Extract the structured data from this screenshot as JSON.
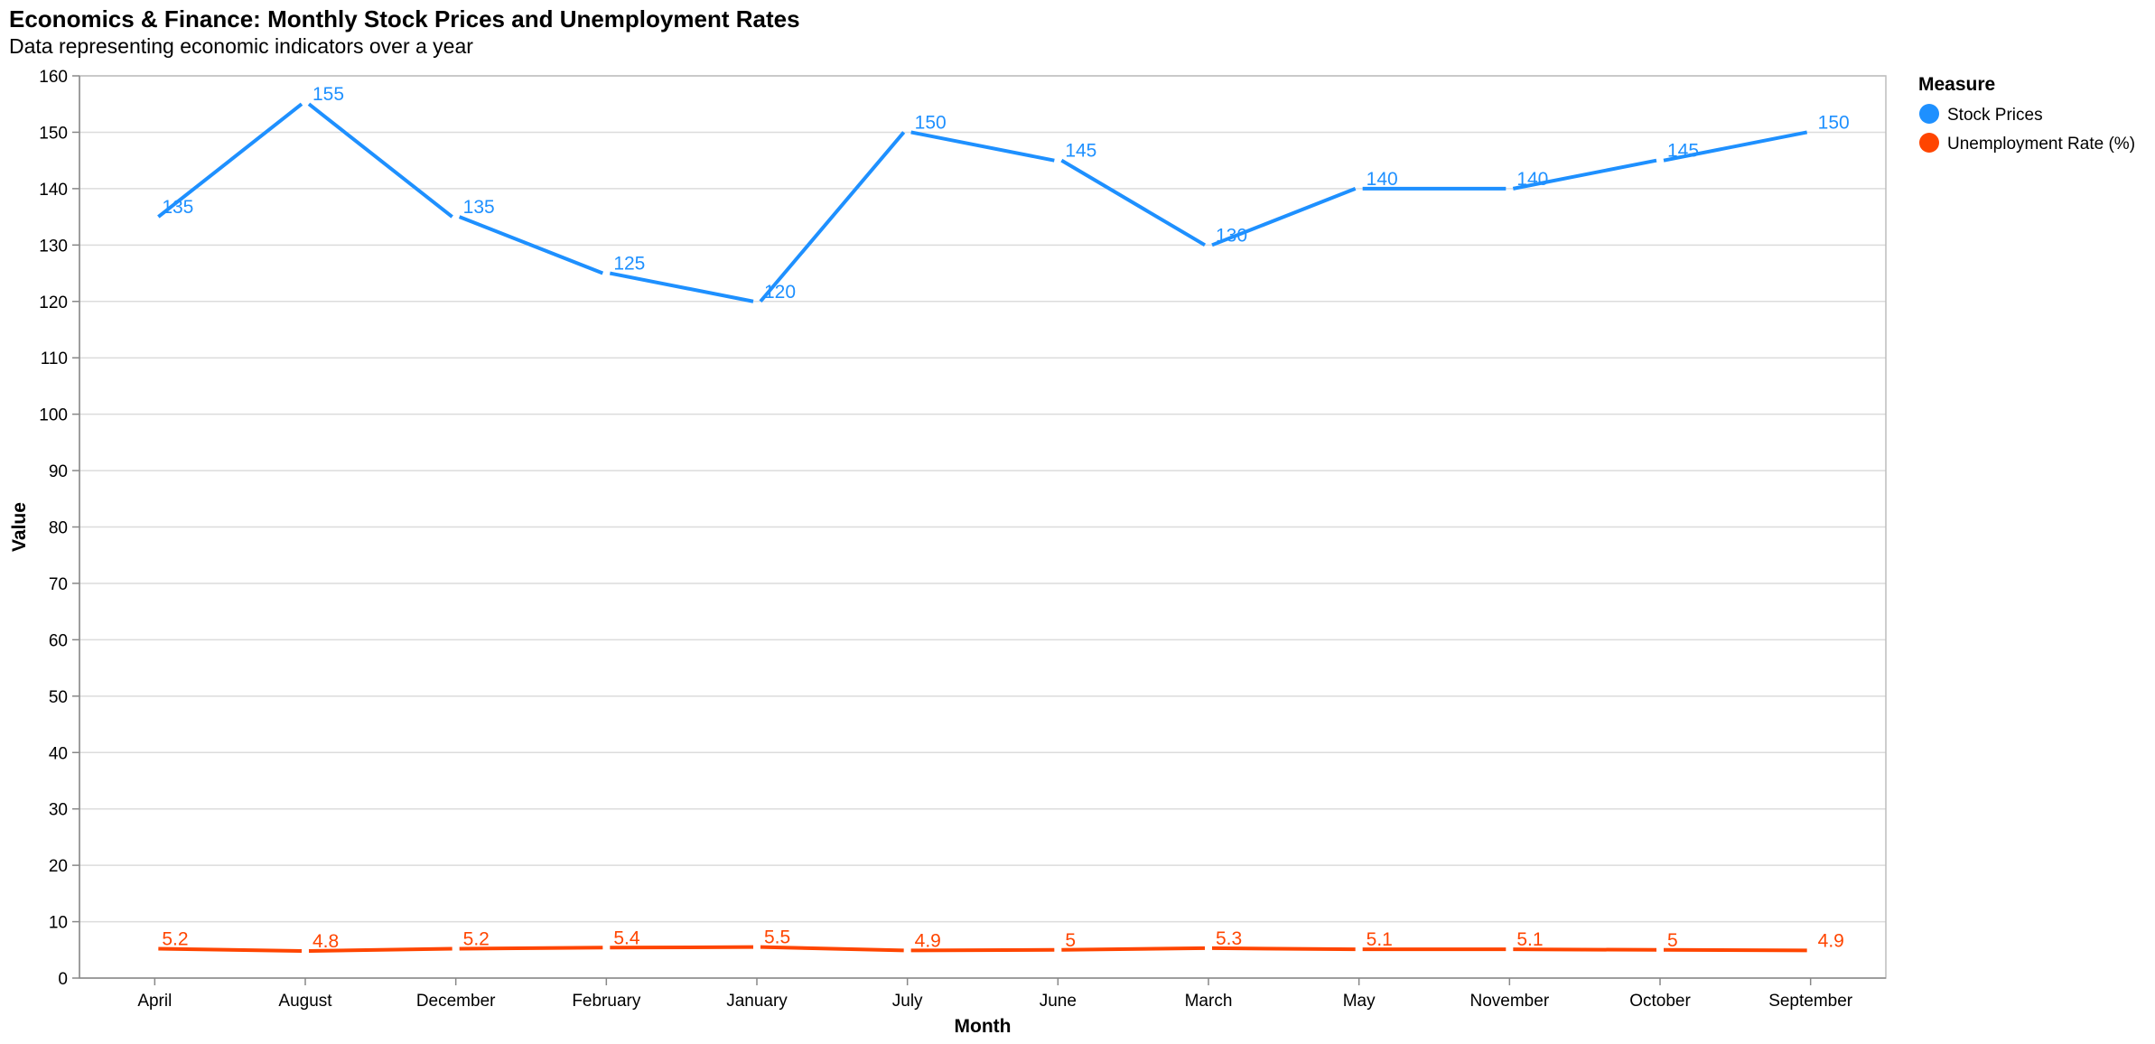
{
  "chart_data": {
    "type": "line",
    "title": "Economics & Finance: Monthly Stock Prices and Unemployment Rates",
    "subtitle": "Data representing economic indicators over a year",
    "xlabel": "Month",
    "ylabel": "Value",
    "categories": [
      "April",
      "August",
      "December",
      "February",
      "January",
      "July",
      "June",
      "March",
      "May",
      "November",
      "October",
      "September"
    ],
    "ylim": [
      0,
      160
    ],
    "yticks": [
      0,
      10,
      20,
      30,
      40,
      50,
      60,
      70,
      80,
      90,
      100,
      110,
      120,
      130,
      140,
      150,
      160
    ],
    "grid": true,
    "legend": {
      "title": "Measure",
      "position": "right"
    },
    "series": [
      {
        "name": "Stock Prices",
        "color": "#1e90ff",
        "values": [
          135,
          155,
          135,
          125,
          120,
          150,
          145,
          130,
          140,
          140,
          145,
          150
        ]
      },
      {
        "name": "Unemployment Rate (%)",
        "color": "#ff4500",
        "values": [
          5.2,
          4.8,
          5.2,
          5.4,
          5.5,
          4.9,
          5,
          5.3,
          5.1,
          5.1,
          5,
          4.9
        ]
      }
    ]
  }
}
